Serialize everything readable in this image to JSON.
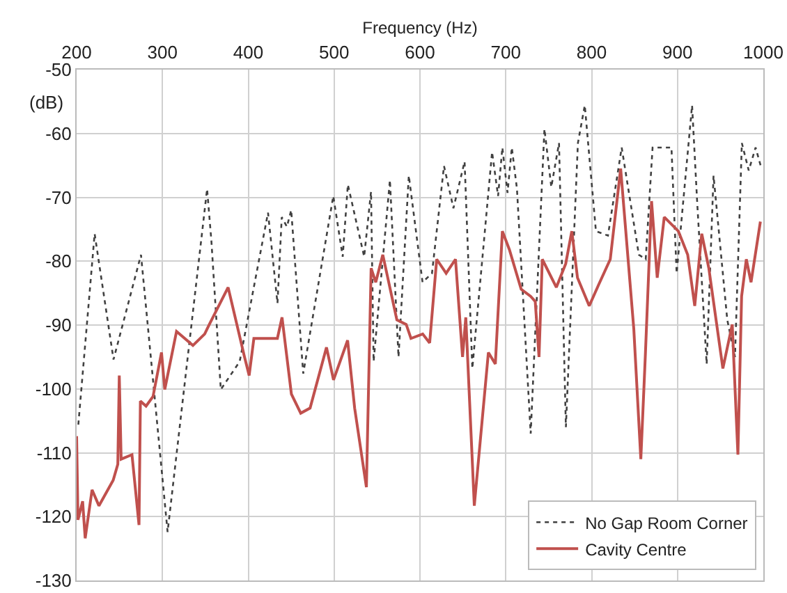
{
  "chart_data": {
    "type": "line",
    "xlabel": "Frequency (Hz)",
    "ylabel": "(dB)",
    "xlim": [
      200,
      1000
    ],
    "xticks": [
      200,
      300,
      400,
      500,
      600,
      700,
      800,
      900,
      1000
    ],
    "ylim": [
      -130,
      -50
    ],
    "yticks": [
      -130,
      -120,
      -110,
      -100,
      -90,
      -80,
      -70,
      -60,
      -50
    ],
    "grid": true,
    "legend": "bottom right",
    "series": [
      {
        "name": "No Gap Room Corner",
        "color": "#404040",
        "line_style": "dotted",
        "x": [
          202,
          221,
          243,
          275,
          306,
          352,
          357,
          368,
          390,
          423,
          434,
          439,
          445,
          450,
          464,
          499,
          510,
          516,
          535,
          543,
          546,
          565,
          575,
          587,
          603,
          614,
          628,
          639,
          652,
          661,
          684,
          691,
          696,
          702,
          707,
          713,
          729,
          745,
          753,
          762,
          770,
          784,
          792,
          805,
          819,
          835,
          855,
          863,
          871,
          893,
          899,
          917,
          923,
          934,
          942,
          958,
          967,
          975,
          983,
          991,
          997
        ],
        "values": [
          -105.6,
          -75.7,
          -95.4,
          -79,
          -122.4,
          -68.7,
          -76.8,
          -100.1,
          -95.7,
          -72.4,
          -86.6,
          -73.1,
          -74.6,
          -72,
          -97.6,
          -69.8,
          -79.3,
          -68,
          -79.3,
          -69.1,
          -95.7,
          -67.3,
          -95,
          -66.6,
          -83.3,
          -81.9,
          -65.1,
          -71.7,
          -64.4,
          -96.8,
          -62.9,
          -69.8,
          -62.2,
          -69.3,
          -62.2,
          -68.7,
          -107,
          -59.3,
          -68.4,
          -61.5,
          -106,
          -61.5,
          -55.6,
          -75.3,
          -76,
          -62.2,
          -79,
          -79.7,
          -62.2,
          -62.2,
          -81.9,
          -55.6,
          -70.9,
          -96.1,
          -66.6,
          -89.2,
          -95,
          -61.5,
          -65.8,
          -62.2,
          -65.1
        ]
      },
      {
        "name": "Cavity Centre",
        "color": "#c0504d",
        "line_style": "solid",
        "x": [
          200,
          201.6,
          207,
          210,
          218,
          226,
          242.6,
          248,
          249.7,
          251.9,
          264.5,
          272.7,
          274.3,
          280.9,
          289,
          298.9,
          302.7,
          316.4,
          335.5,
          349.2,
          354.6,
          376.5,
          395.6,
          401,
          406.5,
          433.9,
          439.3,
          450.2,
          461.1,
          472,
          491.1,
          499.3,
          515.7,
          523.9,
          537.6,
          543.1,
          548.5,
          556.7,
          573.1,
          584,
          589.5,
          603.2,
          611.3,
          619.5,
          630.5,
          641.4,
          649.6,
          653.4,
          663.3,
          679.7,
          687.8,
          696,
          704.2,
          717.9,
          728.9,
          734.3,
          738.7,
          742.5,
          758.9,
          769.8,
          776.9,
          783.5,
          797.2,
          808.1,
          821.7,
          833.8,
          849.1,
          857.3,
          862.7,
          869.8,
          876.4,
          884.6,
          901,
          911.9,
          920.1,
          928.3,
          936.5,
          952.9,
          963.8,
          970.4,
          974.7,
          980.2,
          985.7,
          996.6
        ],
        "values": [
          -107.4,
          -120.5,
          -117.6,
          -123.4,
          -115.8,
          -118.3,
          -114.3,
          -111.8,
          -97.9,
          -111,
          -110.3,
          -121.3,
          -101.9,
          -102.7,
          -101.2,
          -94.3,
          -100.1,
          -91,
          -93.2,
          -91.4,
          -89.9,
          -84.1,
          -95,
          -97.9,
          -92.1,
          -92.1,
          -88.8,
          -100.8,
          -103.8,
          -103,
          -93.5,
          -98.6,
          -92.4,
          -103,
          -115.4,
          -81.1,
          -83.3,
          -79,
          -89.2,
          -89.9,
          -92.1,
          -91.4,
          -92.8,
          -79.7,
          -81.9,
          -79.7,
          -95,
          -88.8,
          -118.3,
          -94.3,
          -96.1,
          -75.3,
          -78.2,
          -84.4,
          -85.5,
          -86.3,
          -95,
          -79.7,
          -84.1,
          -80.4,
          -75.3,
          -82.6,
          -87,
          -83.7,
          -79.7,
          -65.5,
          -90.6,
          -111,
          -94.3,
          -70.6,
          -82.6,
          -73.1,
          -75.3,
          -79,
          -87,
          -75.7,
          -81.1,
          -96.8,
          -89.9,
          -110.3,
          -85.5,
          -79.7,
          -83.3,
          -73.8
        ]
      }
    ]
  }
}
